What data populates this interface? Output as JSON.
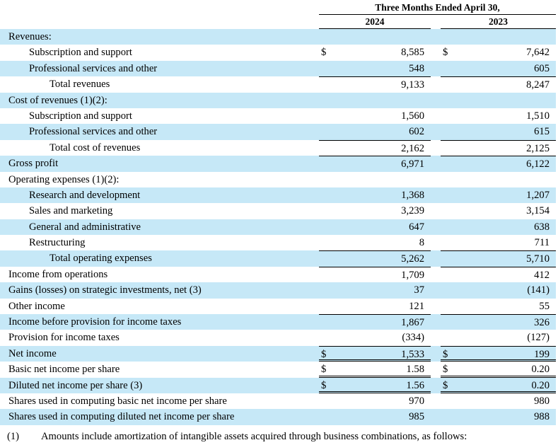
{
  "colors": {
    "row_shade": "#c6e8f7",
    "rule": "#000000"
  },
  "table": {
    "header": {
      "period_label": "Three Months Ended April 30,",
      "columns": [
        "2024",
        "2023"
      ]
    },
    "rows": [
      {
        "label": "Revenues:",
        "indent": 0,
        "shaded": true
      },
      {
        "label": "Subscription and support",
        "indent": 1,
        "shaded": false,
        "dollar1": "$",
        "value1": "8,585",
        "dollar2": "$",
        "value2": "7,642"
      },
      {
        "label": "Professional services and other",
        "indent": 1,
        "shaded": true,
        "value1": "548",
        "value2": "605"
      },
      {
        "label": "Total revenues",
        "indent": 2,
        "shaded": false,
        "value1": "9,133",
        "value2": "8,247",
        "top_border": true
      },
      {
        "label": "Cost of revenues (1)(2):",
        "indent": 0,
        "shaded": true
      },
      {
        "label": "Subscription and support",
        "indent": 1,
        "shaded": false,
        "value1": "1,560",
        "value2": "1,510"
      },
      {
        "label": "Professional services and other",
        "indent": 1,
        "shaded": true,
        "value1": "602",
        "value2": "615"
      },
      {
        "label": "Total cost of revenues",
        "indent": 2,
        "shaded": false,
        "value1": "2,162",
        "value2": "2,125",
        "top_border": true
      },
      {
        "label": "Gross profit",
        "indent": 0,
        "shaded": true,
        "value1": "6,971",
        "value2": "6,122",
        "top_border": true
      },
      {
        "label": "Operating expenses (1)(2):",
        "indent": 0,
        "shaded": false
      },
      {
        "label": "Research and development",
        "indent": 1,
        "shaded": true,
        "value1": "1,368",
        "value2": "1,207"
      },
      {
        "label": "Sales and marketing",
        "indent": 1,
        "shaded": false,
        "value1": "3,239",
        "value2": "3,154"
      },
      {
        "label": "General and administrative",
        "indent": 1,
        "shaded": true,
        "value1": "647",
        "value2": "638"
      },
      {
        "label": "Restructuring",
        "indent": 1,
        "shaded": false,
        "value1": "8",
        "value2": "711"
      },
      {
        "label": "Total operating expenses",
        "indent": 2,
        "shaded": true,
        "value1": "5,262",
        "value2": "5,710",
        "top_border": true
      },
      {
        "label": "Income from operations",
        "indent": 0,
        "shaded": false,
        "value1": "1,709",
        "value2": "412",
        "top_border": true
      },
      {
        "label": "Gains (losses) on strategic investments, net (3)",
        "indent": 0,
        "shaded": true,
        "value1": "37",
        "value2": "(141)"
      },
      {
        "label": "Other income",
        "indent": 0,
        "shaded": false,
        "value1": "121",
        "value2": "55"
      },
      {
        "label": "Income before provision for income taxes",
        "indent": 0,
        "shaded": true,
        "value1": "1,867",
        "value2": "326",
        "top_border": true
      },
      {
        "label": "Provision for income taxes",
        "indent": 0,
        "shaded": false,
        "value1": "(334)",
        "value2": "(127)"
      },
      {
        "label": "Net income",
        "indent": 0,
        "shaded": true,
        "dollar1": "$",
        "value1": "1,533",
        "dollar2": "$",
        "value2": "199",
        "top_border": true,
        "double_bottom": true
      },
      {
        "label": "Basic net income per share",
        "indent": 0,
        "shaded": false,
        "dollar1": "$",
        "value1": "1.58",
        "dollar2": "$",
        "value2": "0.20",
        "double_bottom": true
      },
      {
        "label": "Diluted net income per share (3)",
        "indent": 0,
        "shaded": true,
        "dollar1": "$",
        "value1": "1.56",
        "dollar2": "$",
        "value2": "0.20",
        "double_bottom": true
      },
      {
        "label": "Shares used in computing basic net income per share",
        "indent": 0,
        "shaded": false,
        "value1": "970",
        "value2": "980"
      },
      {
        "label": "Shares used in computing diluted net income per share",
        "indent": 0,
        "shaded": true,
        "value1": "985",
        "value2": "988"
      }
    ]
  },
  "footnote": {
    "marker": "(1)",
    "text": "Amounts include amortization of intangible assets acquired through business combinations, as follows:"
  }
}
